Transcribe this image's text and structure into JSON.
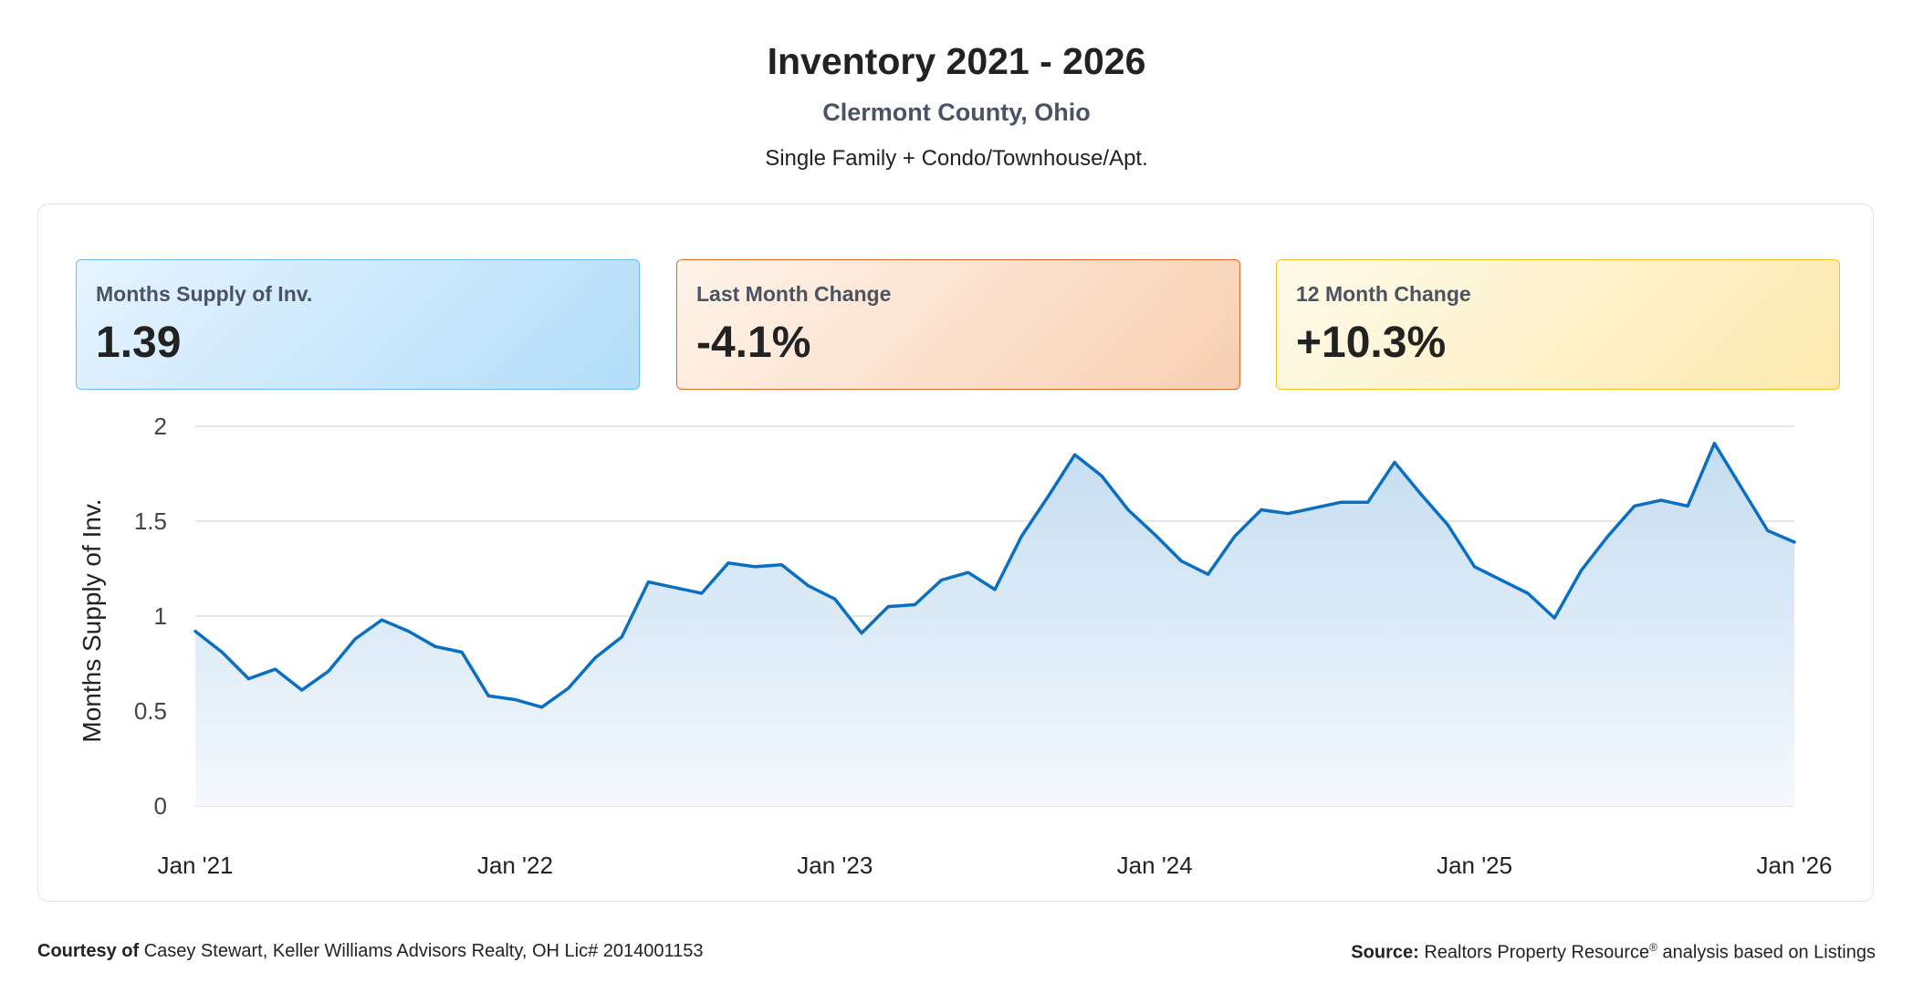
{
  "header": {
    "title": "Inventory 2021 - 2026",
    "subtitle": "Clermont County, Ohio",
    "segment": "Single Family + Condo/Townhouse/Apt."
  },
  "cards": {
    "supply": {
      "label": "Months Supply of Inv.",
      "value": "1.39"
    },
    "last_month": {
      "label": "Last Month Change",
      "value": "-4.1%"
    },
    "twelve_month": {
      "label": "12 Month Change",
      "value": "+10.3%"
    }
  },
  "footer": {
    "courtesy_label": "Courtesy of",
    "courtesy_text": "Casey Stewart, Keller Williams Advisors Realty, OH Lic# 2014001153",
    "source_label": "Source:",
    "source_text": "Realtors Property Resource",
    "source_mark": "®",
    "source_suffix": "analysis based on Listings"
  },
  "colors": {
    "line": "#0a6fc2",
    "area_top": "#c5ddf1",
    "area_bottom": "#f5f9fd",
    "grid": "#dddddd"
  },
  "chart_data": {
    "type": "area",
    "title": "",
    "xlabel": "",
    "ylabel": "Months Supply of Inv.",
    "ylim": [
      0,
      2
    ],
    "y_ticks": [
      "0",
      "0.5",
      "1",
      "1.5",
      "2"
    ],
    "x_ticks": [
      "Jan '21",
      "Jan '22",
      "Jan '23",
      "Jan '24",
      "Jan '25",
      "Jan '26"
    ],
    "grid": true,
    "series": [
      {
        "values": [
          0.92,
          0.81,
          0.67,
          0.72,
          0.61,
          0.71,
          0.88,
          0.98,
          0.92,
          0.84,
          0.81,
          0.58,
          0.56,
          0.52,
          0.62,
          0.78,
          0.89,
          1.18,
          1.15,
          1.12,
          1.28,
          1.26,
          1.27,
          1.16,
          1.09,
          0.91,
          1.05,
          1.06,
          1.19,
          1.23,
          1.14,
          1.42,
          1.63,
          1.85,
          1.74,
          1.56,
          1.43,
          1.29,
          1.22,
          1.42,
          1.56,
          1.54,
          1.57,
          1.6,
          1.6,
          1.81,
          1.64,
          1.48,
          1.26,
          1.19,
          1.12,
          0.99,
          1.24,
          1.42,
          1.58,
          1.61,
          1.58,
          1.91,
          1.68,
          1.45,
          1.39
        ]
      }
    ]
  }
}
